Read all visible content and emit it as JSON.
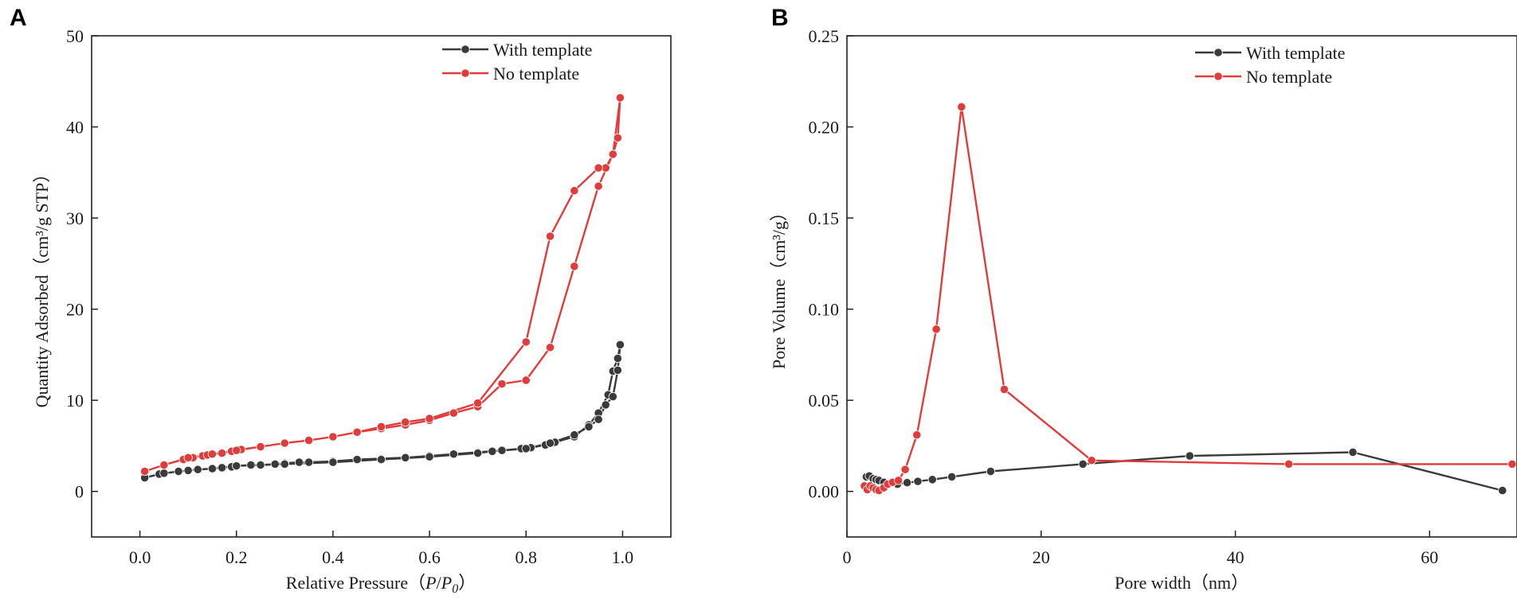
{
  "chart_data": [
    {
      "panel": "A",
      "type": "line",
      "title": "",
      "xlabel": "Relative Pressure（P/P0）",
      "xlabel_parts": {
        "prefix": "Relative Pressure（",
        "var1": "P",
        "slash": "/",
        "var2": "P",
        "sub": "0",
        "suffix": "）"
      },
      "ylabel": "Quantity Adsorbed（cm³/g STP）",
      "xlim": [
        -0.1,
        1.1
      ],
      "ylim": [
        -5,
        50
      ],
      "xticks": [
        0.0,
        0.2,
        0.4,
        0.6,
        0.8,
        1.0
      ],
      "xtick_labels": [
        "0.0",
        "0.2",
        "0.4",
        "0.6",
        "0.8",
        "1.0"
      ],
      "yticks": [
        0,
        10,
        20,
        30,
        40,
        50
      ],
      "ytick_labels": [
        "0",
        "10",
        "20",
        "30",
        "40",
        "50"
      ],
      "legend_position": "top-right",
      "series": [
        {
          "name": "With template",
          "color": "#3a3a3a",
          "x": [
            0.01,
            0.04,
            0.08,
            0.1,
            0.12,
            0.15,
            0.17,
            0.19,
            0.2,
            0.23,
            0.25,
            0.28,
            0.3,
            0.33,
            0.35,
            0.4,
            0.45,
            0.5,
            0.55,
            0.6,
            0.65,
            0.7,
            0.75,
            0.79,
            0.81,
            0.84,
            0.86,
            0.9,
            0.93,
            0.95,
            0.97,
            0.98,
            0.99,
            0.995,
            0.99,
            0.98,
            0.965,
            0.95,
            0.93,
            0.9,
            0.85,
            0.8,
            0.73,
            0.7,
            0.6,
            0.5,
            0.4,
            0.3,
            0.2,
            0.15,
            0.1,
            0.05,
            0.01
          ],
          "y": [
            1.5,
            1.9,
            2.2,
            2.3,
            2.4,
            2.5,
            2.6,
            2.7,
            2.8,
            2.9,
            2.9,
            3.0,
            3.1,
            3.2,
            3.2,
            3.3,
            3.5,
            3.6,
            3.7,
            3.9,
            4.1,
            4.3,
            4.5,
            4.7,
            4.8,
            5.1,
            5.4,
            6.0,
            7.3,
            8.6,
            10.6,
            13.2,
            14.6,
            16.1,
            13.3,
            10.4,
            9.5,
            7.9,
            7.1,
            6.2,
            5.3,
            4.7,
            4.4,
            4.2,
            3.8,
            3.5,
            3.2,
            3.0,
            2.8,
            2.5,
            2.3,
            2.0,
            1.5
          ]
        },
        {
          "name": "No template",
          "color": "#e03c3c",
          "x": [
            0.01,
            0.05,
            0.09,
            0.11,
            0.13,
            0.14,
            0.17,
            0.19,
            0.21,
            0.25,
            0.3,
            0.35,
            0.4,
            0.45,
            0.5,
            0.55,
            0.6,
            0.65,
            0.7,
            0.75,
            0.8,
            0.85,
            0.9,
            0.95,
            0.98,
            0.995,
            0.99,
            0.98,
            0.965,
            0.95,
            0.9,
            0.85,
            0.8,
            0.7,
            0.6,
            0.55,
            0.5,
            0.45,
            0.4,
            0.35,
            0.3,
            0.25,
            0.2,
            0.15,
            0.1,
            0.05,
            0.01
          ],
          "y": [
            2.2,
            2.9,
            3.5,
            3.7,
            3.9,
            4.0,
            4.2,
            4.4,
            4.6,
            4.9,
            5.3,
            5.6,
            6.0,
            6.5,
            6.9,
            7.3,
            7.8,
            8.6,
            9.3,
            11.8,
            12.2,
            15.8,
            24.7,
            33.5,
            37.0,
            43.2,
            38.8,
            37.0,
            35.5,
            35.5,
            33.0,
            28.0,
            16.4,
            9.7,
            8.0,
            7.6,
            7.1,
            6.5,
            6.0,
            5.6,
            5.3,
            4.9,
            4.5,
            4.1,
            3.7,
            2.9,
            2.2
          ]
        }
      ]
    },
    {
      "panel": "B",
      "type": "line",
      "title": "",
      "xlabel": "Pore width（nm）",
      "ylabel": "Pore Volume（cm³/g）",
      "xlim": [
        0,
        69
      ],
      "ylim": [
        -0.025,
        0.25
      ],
      "xticks": [
        0,
        20,
        40,
        60
      ],
      "xtick_labels": [
        "0",
        "20",
        "40",
        "60"
      ],
      "yticks": [
        0.0,
        0.05,
        0.1,
        0.15,
        0.2,
        0.25
      ],
      "ytick_labels": [
        "0.00",
        "0.05",
        "0.10",
        "0.15",
        "0.20",
        "0.25"
      ],
      "legend_position": "top-right",
      "series": [
        {
          "name": "With template",
          "color": "#3a3a3a",
          "x": [
            2.0,
            2.3,
            2.7,
            3.0,
            3.3,
            3.8,
            4.4,
            5.2,
            6.2,
            7.3,
            8.8,
            10.8,
            14.8,
            24.3,
            35.3,
            52.1,
            67.5
          ],
          "y": [
            0.008,
            0.0085,
            0.007,
            0.0065,
            0.006,
            0.005,
            0.0045,
            0.004,
            0.0048,
            0.0055,
            0.0065,
            0.008,
            0.011,
            0.015,
            0.0195,
            0.0215,
            0.0005
          ]
        },
        {
          "name": "No template",
          "color": "#e03c3c",
          "x": [
            1.8,
            2.1,
            2.4,
            2.7,
            3.0,
            3.3,
            3.8,
            4.2,
            4.7,
            5.3,
            6.0,
            7.2,
            9.2,
            11.8,
            16.2,
            25.2,
            45.5,
            68.5
          ],
          "y": [
            0.003,
            0.001,
            0.003,
            0.002,
            0.001,
            0.0005,
            0.002,
            0.004,
            0.005,
            0.006,
            0.012,
            0.031,
            0.089,
            0.211,
            0.056,
            0.017,
            0.015,
            0.015
          ]
        }
      ]
    }
  ]
}
